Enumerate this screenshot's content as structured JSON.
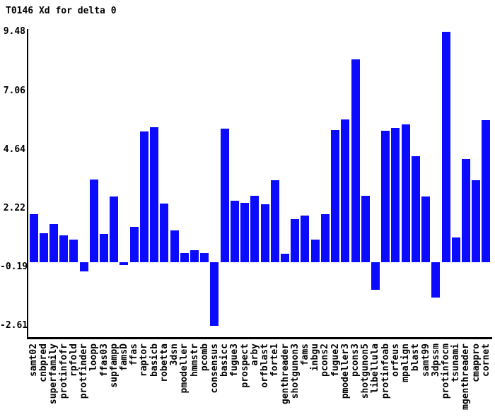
{
  "title": "T0146 Xd for delta 0",
  "chart_data": {
    "type": "bar",
    "title": "T0146 Xd for delta 0",
    "xlabel": "",
    "ylabel": "",
    "grid": false,
    "legend": false,
    "ylim": [
      -2.61,
      9.48
    ],
    "y_ticks": [
      9.48,
      7.06,
      4.64,
      2.22,
      -0.19,
      -2.61
    ],
    "y_tick_labels": [
      "9.48",
      "7.06",
      "4.64",
      "2.22",
      "-0.19",
      "-2.61"
    ],
    "x_label_rotation": 90,
    "bar_color": "#0b0bff",
    "axis_color": "#000000",
    "background_color": "#ffffff",
    "categories": [
      "samt02",
      "cnbpred",
      "superfamily",
      "protinfofr",
      "rpfold",
      "protfinder",
      "loopp",
      "ffas03",
      "supfampp",
      "famsD",
      "ffas",
      "raptor",
      "basicb",
      "robetta",
      "3dsn",
      "pmodeller",
      "hmmstr",
      "pcomb",
      "consensus",
      "basicc",
      "fugue3",
      "prospect",
      "arby",
      "orfblast",
      "forte1",
      "genthreader",
      "shotgunon3",
      "fams",
      "inbgu",
      "pcons2",
      "fugue2",
      "pmodeller3",
      "pcons3",
      "shotgunon5",
      "libellula",
      "protinfoab",
      "orfeus",
      "mpalign",
      "blast",
      "samt99",
      "3dpssm",
      "protinfocm",
      "tsunami",
      "mgenthreader",
      "cmappro",
      "cornet"
    ],
    "values": [
      1.97,
      1.19,
      1.57,
      1.11,
      0.92,
      -0.37,
      3.4,
      1.16,
      2.7,
      -0.13,
      1.44,
      5.38,
      5.54,
      2.4,
      1.32,
      0.37,
      0.48,
      0.37,
      -2.61,
      5.5,
      2.52,
      2.44,
      2.73,
      2.38,
      3.37,
      0.36,
      1.77,
      1.92,
      0.92,
      1.97,
      5.45,
      5.88,
      8.34,
      2.72,
      -1.13,
      5.4,
      5.52,
      5.68,
      4.36,
      2.69,
      -1.44,
      9.48,
      1.01,
      4.24,
      3.37,
      5.85
    ]
  }
}
